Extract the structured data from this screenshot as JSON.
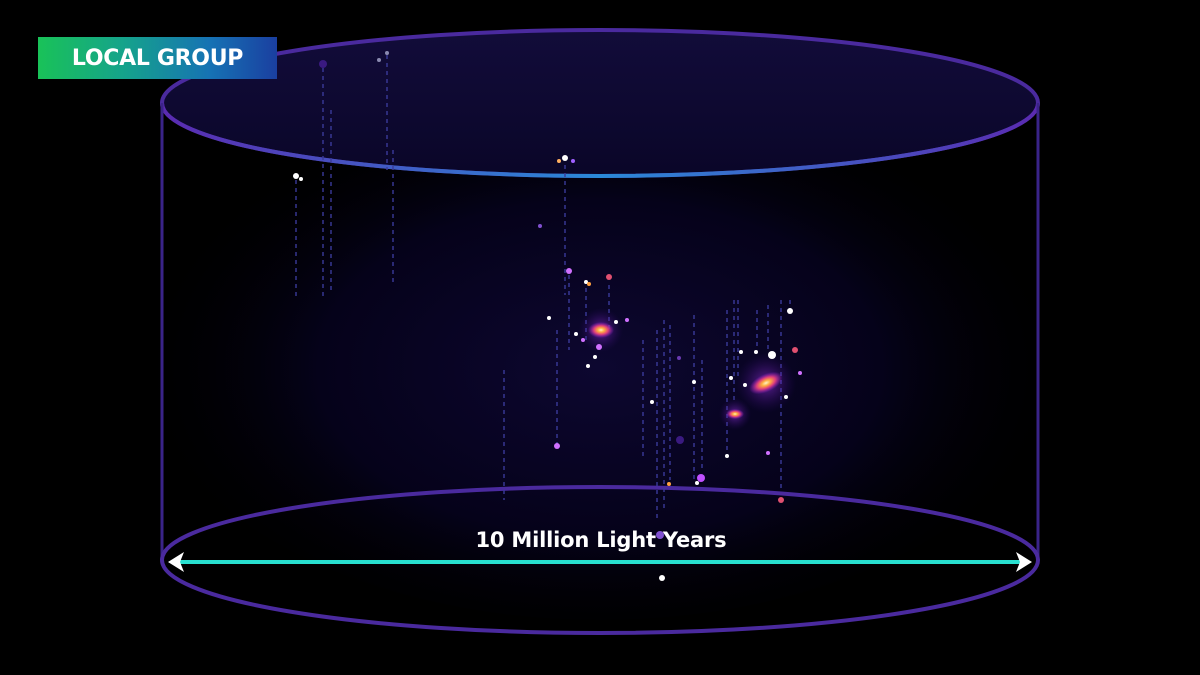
{
  "badge": {
    "label": "LOCAL GROUP"
  },
  "scale": {
    "label": "10 Million Light Years"
  },
  "colors": {
    "background": "#000000",
    "cylinder_stroke": "#4a2a9e",
    "cylinder_top_fill": "#0e0a30",
    "scale_bar": "#28e0d0",
    "badge_start": "#19c258",
    "badge_end": "#1a3fa0",
    "galaxy_core": "#ffb347",
    "galaxy_halo": "#c13cff"
  },
  "icons": {
    "scale_left_end": "arrowhead-left-icon",
    "scale_right_end": "arrowhead-right-icon"
  }
}
